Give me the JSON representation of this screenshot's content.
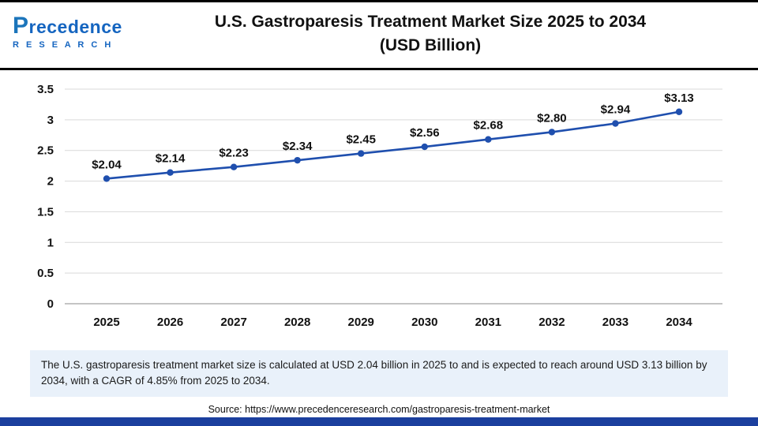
{
  "header": {
    "logo_p": "P",
    "logo_rest": "recedence",
    "logo_sub": "R E S E A R C H",
    "title_line1": "U.S. Gastroparesis Treatment Market Size 2025 to 2034",
    "title_line2": "(USD Billion)"
  },
  "chart_data": {
    "type": "line",
    "title": "U.S. Gastroparesis Treatment Market Size 2025 to 2034 (USD Billion)",
    "categories": [
      "2025",
      "2026",
      "2027",
      "2028",
      "2029",
      "2030",
      "2031",
      "2032",
      "2033",
      "2034"
    ],
    "values": [
      2.04,
      2.14,
      2.23,
      2.34,
      2.45,
      2.56,
      2.68,
      2.8,
      2.94,
      3.13
    ],
    "point_labels": [
      "$2.04",
      "$2.14",
      "$2.23",
      "$2.34",
      "$2.45",
      "$2.56",
      "$2.68",
      "$2.80",
      "$2.94",
      "$3.13"
    ],
    "xlabel": "",
    "ylabel": "",
    "ylim": [
      0,
      3.5
    ],
    "ytick_step": 0.5,
    "grid": true,
    "legend_position": "none",
    "line_color": "#1f4fae",
    "marker_color": "#1f4fae"
  },
  "note": {
    "text": "The U.S. gastroparesis treatment market size is calculated at USD 2.04 billion in 2025 to and is expected to reach around USD 3.13 billion by 2034, with a CAGR of 4.85% from 2025 to 2034."
  },
  "source": {
    "text": "Source: https://www.precedenceresearch.com/gastroparesis-treatment-market"
  },
  "colors": {
    "accent_blue": "#1f4fae",
    "logo_blue": "#1565c0",
    "note_bg": "#e9f1fa",
    "bottom_bar": "#1b3f9e",
    "gridline": "#d9d9d9",
    "axis_line": "#b0b0b0"
  }
}
